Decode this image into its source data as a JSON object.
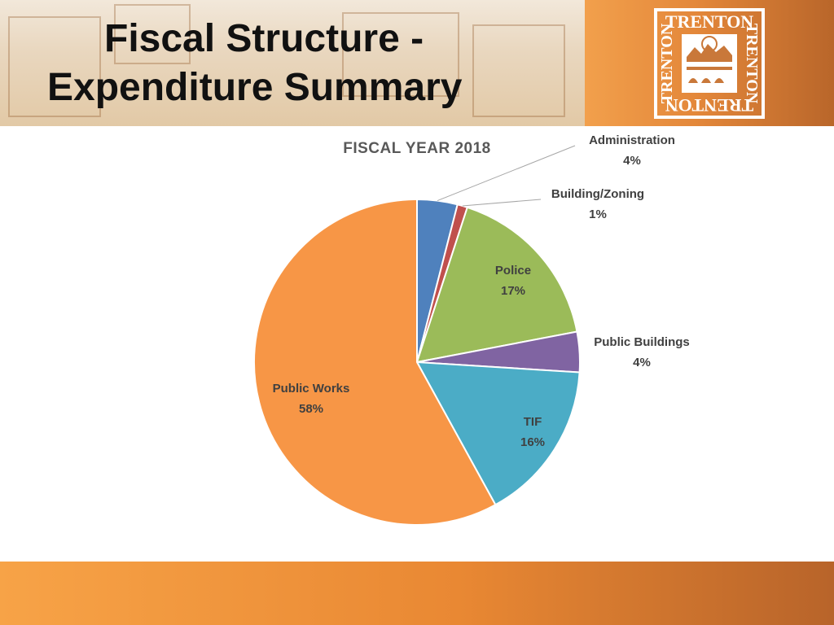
{
  "slide": {
    "title_line1": "Fiscal Structure -",
    "title_line2": "Expenditure Summary"
  },
  "logo": {
    "text": "TRENTON",
    "color": "#ffffff"
  },
  "colors": {
    "header_accent": "#e3873a",
    "footer_accent": "#e98833"
  },
  "chart_data": {
    "type": "pie",
    "title": "FISCAL YEAR 2018",
    "categories": [
      "Administration",
      "Building/Zoning",
      "Police",
      "Public Buildings",
      "TIF",
      "Public Works"
    ],
    "values": [
      4,
      1,
      17,
      4,
      16,
      58
    ],
    "labels": [
      "4%",
      "1%",
      "17%",
      "4%",
      "16%",
      "58%"
    ],
    "colors": [
      "#4f81bd",
      "#c0504d",
      "#9bbb59",
      "#8064a2",
      "#4bacc6",
      "#f79646"
    ],
    "start_angle_deg": 0,
    "direction": "clockwise",
    "legend": "none",
    "data_labels": "category name and percent"
  }
}
